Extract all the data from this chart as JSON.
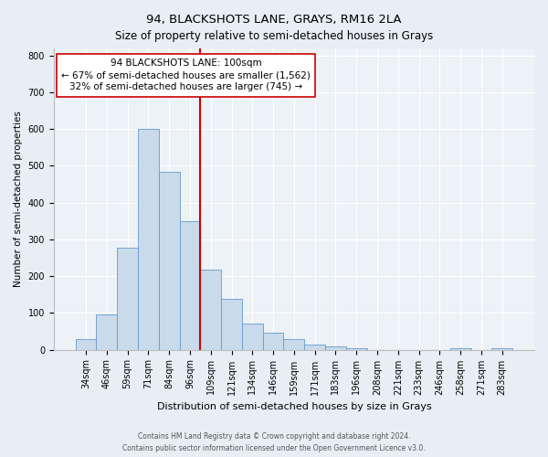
{
  "title": "94, BLACKSHOTS LANE, GRAYS, RM16 2LA",
  "subtitle": "Size of property relative to semi-detached houses in Grays",
  "xlabel": "Distribution of semi-detached houses by size in Grays",
  "ylabel": "Number of semi-detached properties",
  "bin_labels": [
    "34sqm",
    "46sqm",
    "59sqm",
    "71sqm",
    "84sqm",
    "96sqm",
    "109sqm",
    "121sqm",
    "134sqm",
    "146sqm",
    "159sqm",
    "171sqm",
    "183sqm",
    "196sqm",
    "208sqm",
    "221sqm",
    "233sqm",
    "246sqm",
    "258sqm",
    "271sqm",
    "283sqm"
  ],
  "bar_heights": [
    28,
    97,
    277,
    600,
    483,
    350,
    217,
    137,
    70,
    45,
    28,
    15,
    8,
    3,
    0,
    0,
    0,
    0,
    5,
    0,
    5
  ],
  "bar_color": "#c9daea",
  "bar_edge_color": "#6699cc",
  "vline_x": 5.5,
  "vline_color": "#cc0000",
  "annotation_text": "94 BLACKSHOTS LANE: 100sqm\n← 67% of semi-detached houses are smaller (1,562)\n32% of semi-detached houses are larger (745) →",
  "annotation_box_facecolor": "#ffffff",
  "annotation_box_edge": "#cc0000",
  "ylim": [
    0,
    820
  ],
  "yticks": [
    0,
    100,
    200,
    300,
    400,
    500,
    600,
    700,
    800
  ],
  "footer_line1": "Contains HM Land Registry data © Crown copyright and database right 2024.",
  "footer_line2": "Contains public sector information licensed under the Open Government Licence v3.0.",
  "bg_color": "#e8eef5",
  "plot_bg_color": "#edf2f7",
  "grid_color": "#ffffff",
  "title_fontsize": 9.5,
  "subtitle_fontsize": 8.5,
  "tick_fontsize": 7,
  "ylabel_fontsize": 7.5,
  "xlabel_fontsize": 8,
  "annot_fontsize": 7.5,
  "footer_fontsize": 5.5
}
